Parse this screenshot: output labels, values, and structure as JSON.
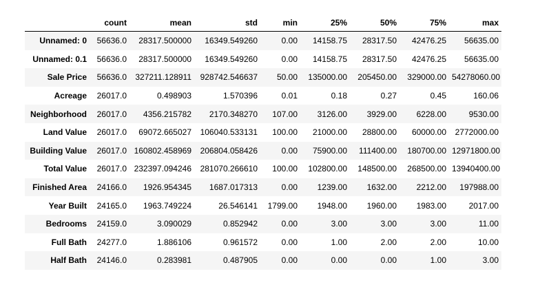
{
  "columns": [
    "",
    "count",
    "mean",
    "std",
    "min",
    "25%",
    "50%",
    "75%",
    "max"
  ],
  "rows": [
    {
      "label": "Unnamed: 0",
      "cells": [
        "56636.0",
        "28317.500000",
        "16349.549260",
        "0.00",
        "14158.75",
        "28317.50",
        "42476.25",
        "56635.00"
      ]
    },
    {
      "label": "Unnamed: 0.1",
      "cells": [
        "56636.0",
        "28317.500000",
        "16349.549260",
        "0.00",
        "14158.75",
        "28317.50",
        "42476.25",
        "56635.00"
      ]
    },
    {
      "label": "Sale Price",
      "cells": [
        "56636.0",
        "327211.128911",
        "928742.546637",
        "50.00",
        "135000.00",
        "205450.00",
        "329000.00",
        "54278060.00"
      ]
    },
    {
      "label": "Acreage",
      "cells": [
        "26017.0",
        "0.498903",
        "1.570396",
        "0.01",
        "0.18",
        "0.27",
        "0.45",
        "160.06"
      ]
    },
    {
      "label": "Neighborhood",
      "cells": [
        "26017.0",
        "4356.215782",
        "2170.348270",
        "107.00",
        "3126.00",
        "3929.00",
        "6228.00",
        "9530.00"
      ]
    },
    {
      "label": "Land Value",
      "cells": [
        "26017.0",
        "69072.665027",
        "106040.533131",
        "100.00",
        "21000.00",
        "28800.00",
        "60000.00",
        "2772000.00"
      ]
    },
    {
      "label": "Building Value",
      "cells": [
        "26017.0",
        "160802.458969",
        "206804.058426",
        "0.00",
        "75900.00",
        "111400.00",
        "180700.00",
        "12971800.00"
      ]
    },
    {
      "label": "Total Value",
      "cells": [
        "26017.0",
        "232397.094246",
        "281070.266610",
        "100.00",
        "102800.00",
        "148500.00",
        "268500.00",
        "13940400.00"
      ]
    },
    {
      "label": "Finished Area",
      "cells": [
        "24166.0",
        "1926.954345",
        "1687.017313",
        "0.00",
        "1239.00",
        "1632.00",
        "2212.00",
        "197988.00"
      ]
    },
    {
      "label": "Year Built",
      "cells": [
        "24165.0",
        "1963.749224",
        "26.546141",
        "1799.00",
        "1948.00",
        "1960.00",
        "1983.00",
        "2017.00"
      ]
    },
    {
      "label": "Bedrooms",
      "cells": [
        "24159.0",
        "3.090029",
        "0.852942",
        "0.00",
        "3.00",
        "3.00",
        "3.00",
        "11.00"
      ]
    },
    {
      "label": "Full Bath",
      "cells": [
        "24277.0",
        "1.886106",
        "0.961572",
        "0.00",
        "1.00",
        "2.00",
        "2.00",
        "10.00"
      ]
    },
    {
      "label": "Half Bath",
      "cells": [
        "24146.0",
        "0.283981",
        "0.487905",
        "0.00",
        "0.00",
        "0.00",
        "1.00",
        "3.00"
      ]
    }
  ]
}
